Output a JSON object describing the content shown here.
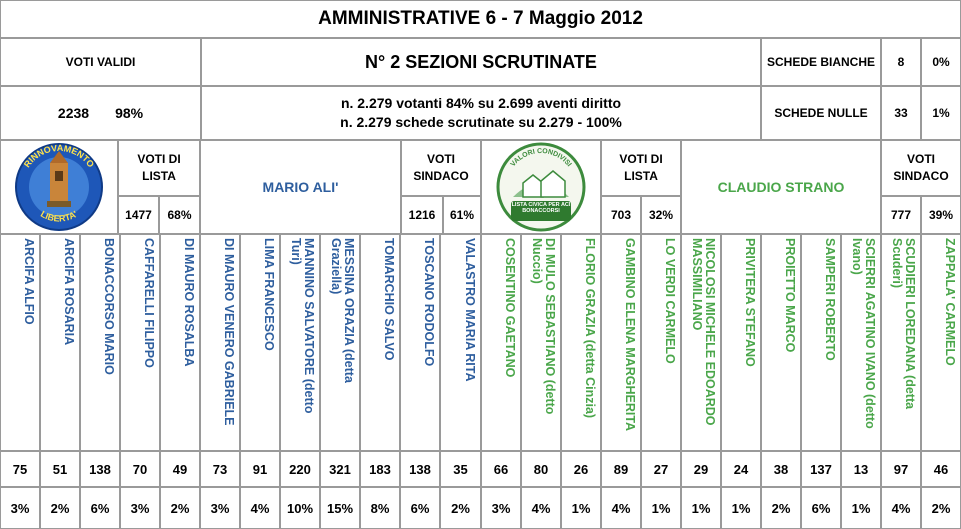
{
  "title": "AMMINISTRATIVE 6 - 7 Maggio 2012",
  "voti_validi": {
    "label": "VOTI VALIDI",
    "count": "2238",
    "pct": "98%"
  },
  "sezioni": "N° 2 SEZIONI SCRUTINATE",
  "votanti_line": "n. 2.279 votanti 84% su 2.699 aventi diritto",
  "schede_line": "n. 2.279 schede scrutinate su 2.279  - 100%",
  "schede_bianche": {
    "label": "SCHEDE BIANCHE",
    "count": "8",
    "pct": "0%"
  },
  "schede_nulle": {
    "label": "SCHEDE NULLE",
    "count": "33",
    "pct": "1%"
  },
  "list1": {
    "logo_text_top": "RINNOVAMENTO",
    "logo_text_bottom": "LIBERTA'",
    "voti_lista_label": "VOTI DI LISTA",
    "voti_lista": "1477",
    "voti_lista_pct": "68%",
    "candidate": "MARIO ALI'",
    "voti_sindaco_label": "VOTI SINDACO",
    "voti_sindaco": "1216",
    "voti_sindaco_pct": "61%",
    "color": "#2e5e9e"
  },
  "list2": {
    "logo_text_top": "VALORI CONDIVISI",
    "logo_text_bottom": "LISTA CIVICA PER ACI BONACCORSI",
    "voti_lista_label": "VOTI DI LISTA",
    "voti_lista": "703",
    "voti_lista_pct": "32%",
    "candidate": "CLAUDIO STRANO",
    "voti_sindaco_label": "VOTI SINDACO",
    "voti_sindaco": "777",
    "voti_sindaco_pct": "39%",
    "color": "#4aa64a"
  },
  "candidates": [
    {
      "name": "ARCIFA ALFIO",
      "votes": "75",
      "pct": "3%",
      "list": 1
    },
    {
      "name": "ARCIFA ROSARIA",
      "votes": "51",
      "pct": "2%",
      "list": 1
    },
    {
      "name": "BONACCORSO MARIO",
      "votes": "138",
      "pct": "6%",
      "list": 1
    },
    {
      "name": "CAFFARELLI FILIPPO",
      "votes": "70",
      "pct": "3%",
      "list": 1
    },
    {
      "name": "DI MAURO ROSALBA",
      "votes": "49",
      "pct": "2%",
      "list": 1
    },
    {
      "name": "DI MAURO VENERO GABRIELE",
      "votes": "73",
      "pct": "3%",
      "list": 1
    },
    {
      "name": "LIMA FRANCESCO",
      "votes": "91",
      "pct": "4%",
      "list": 1
    },
    {
      "name": "MANNINO SALVATORE (detto Turi)",
      "votes": "220",
      "pct": "10%",
      "list": 1
    },
    {
      "name": "MESSINA  ORAZIA (detta Graziella)",
      "votes": "321",
      "pct": "15%",
      "list": 1
    },
    {
      "name": "TOMARCHIO SALVO",
      "votes": "183",
      "pct": "8%",
      "list": 1
    },
    {
      "name": "TOSCANO RODOLFO",
      "votes": "138",
      "pct": "6%",
      "list": 1
    },
    {
      "name": "VALASTRO MARIA RITA",
      "votes": "35",
      "pct": "2%",
      "list": 1
    },
    {
      "name": "COSENTINO GAETANO",
      "votes": "66",
      "pct": "3%",
      "list": 2
    },
    {
      "name": "DI MULO SEBASTIANO (detto Nuccio)",
      "votes": "80",
      "pct": "4%",
      "list": 2
    },
    {
      "name": "FLORIO GRAZIA  (detta Cinzia)",
      "votes": "26",
      "pct": "1%",
      "list": 2
    },
    {
      "name": "GAMBINO ELENA MARGHERITA",
      "votes": "89",
      "pct": "4%",
      "list": 2
    },
    {
      "name": "LO VERDI CARMELO",
      "votes": "27",
      "pct": "1%",
      "list": 2
    },
    {
      "name": "NICOLOSI MICHELE EDOARDO MASSIMILIANO",
      "votes": "29",
      "pct": "1%",
      "list": 2
    },
    {
      "name": "PRIVITERA STEFANO",
      "votes": "24",
      "pct": "1%",
      "list": 2
    },
    {
      "name": "PROIETTO MARCO",
      "votes": "38",
      "pct": "2%",
      "list": 2
    },
    {
      "name": "SAMPERI ROBERTO",
      "votes": "137",
      "pct": "6%",
      "list": 2
    },
    {
      "name": "SCIERRI AGATINO IVANO (detto Ivano)",
      "votes": "13",
      "pct": "1%",
      "list": 2
    },
    {
      "name": "SCUDIERI LOREDANA (detta Scuderi)",
      "votes": "97",
      "pct": "4%",
      "list": 2
    },
    {
      "name": "ZAPPALA' CARMELO",
      "votes": "46",
      "pct": "2%",
      "list": 2
    }
  ]
}
